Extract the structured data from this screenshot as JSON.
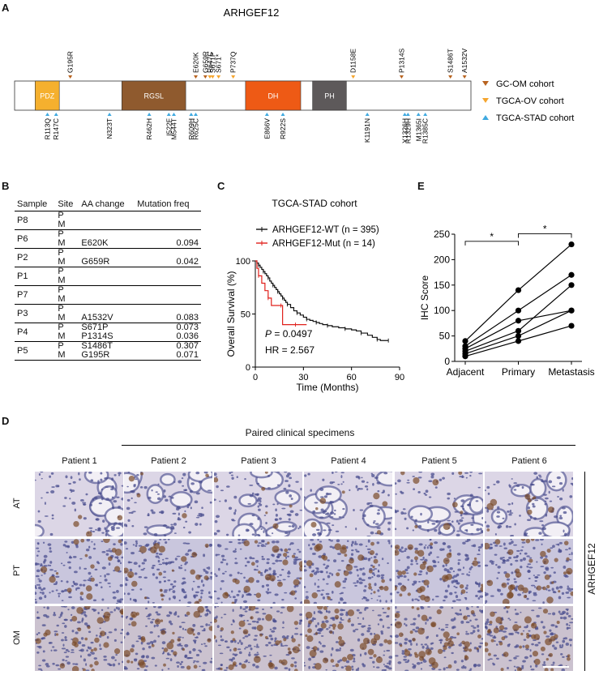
{
  "panelA": {
    "letter": "A",
    "gene_title": "ARHGEF12",
    "domains": [
      {
        "name": "PDZ",
        "start": 0.045,
        "end": 0.098,
        "color": "#f5b02e"
      },
      {
        "name": "RGSL",
        "start": 0.235,
        "end": 0.375,
        "color": "#8f5a2e"
      },
      {
        "name": "DH",
        "start": 0.506,
        "end": 0.627,
        "color": "#ee5a15"
      },
      {
        "name": "PH",
        "start": 0.653,
        "end": 0.727,
        "color": "#5d595a"
      }
    ],
    "top_mutations": [
      {
        "label": "G195R",
        "pos": 0.122,
        "color": "#b8631f"
      },
      {
        "label": "E620K",
        "pos": 0.397,
        "color": "#b8631f"
      },
      {
        "label": "G659R",
        "pos": 0.418,
        "color": "#b8631f"
      },
      {
        "label": "R647C",
        "pos": 0.428,
        "color": "#f5a52e"
      },
      {
        "label": "S671P",
        "pos": 0.434,
        "color": "#f5a52e"
      },
      {
        "label": "S671*",
        "pos": 0.447,
        "color": "#f5a52e"
      },
      {
        "label": "P737Q",
        "pos": 0.479,
        "color": "#f5a52e"
      },
      {
        "label": "D1158E",
        "pos": 0.742,
        "color": "#f5a52e"
      },
      {
        "label": "P1314S",
        "pos": 0.848,
        "color": "#b8631f"
      },
      {
        "label": "S1486T",
        "pos": 0.955,
        "color": "#b8631f"
      },
      {
        "label": "A1532V",
        "pos": 0.986,
        "color": "#b8631f"
      }
    ],
    "bottom_mutations": [
      {
        "label": "R113Q",
        "pos": 0.072
      },
      {
        "label": "R147C",
        "pos": 0.091
      },
      {
        "label": "N323T",
        "pos": 0.208
      },
      {
        "label": "R462H",
        "pos": 0.295
      },
      {
        "label": "I522F",
        "pos": 0.338
      },
      {
        "label": "M544T",
        "pos": 0.349
      },
      {
        "label": "R609H",
        "pos": 0.387
      },
      {
        "label": "R625C",
        "pos": 0.397
      },
      {
        "label": "E866V",
        "pos": 0.553
      },
      {
        "label": "R922S",
        "pos": 0.588
      },
      {
        "label": "K1191N",
        "pos": 0.773
      },
      {
        "label": "Y1326H",
        "pos": 0.855
      },
      {
        "label": "R1329H",
        "pos": 0.862
      },
      {
        "label": "M1365I",
        "pos": 0.885
      },
      {
        "label": "R1385C",
        "pos": 0.9
      }
    ],
    "legend": [
      {
        "label": "GC-OM cohort",
        "color": "#b8631f",
        "marker": "down"
      },
      {
        "label": "TGCA-OV cohort",
        "color": "#f5a52e",
        "marker": "down"
      },
      {
        "label": "TGCA-STAD cohort",
        "color": "#3fa9e0",
        "marker": "up"
      }
    ]
  },
  "panelB": {
    "letter": "B",
    "headers": [
      "Sample",
      "Site",
      "AA change",
      "Mutation freq"
    ],
    "rows": [
      {
        "sample": "P8",
        "sites": [
          "P",
          "M"
        ],
        "changes": [
          "",
          ""
        ],
        "freqs": [
          "",
          ""
        ]
      },
      {
        "sample": "P6",
        "sites": [
          "P",
          "M"
        ],
        "changes": [
          "",
          "E620K"
        ],
        "freqs": [
          "",
          "0.094"
        ]
      },
      {
        "sample": "P2",
        "sites": [
          "P",
          "M"
        ],
        "changes": [
          "",
          "G659R"
        ],
        "freqs": [
          "",
          "0.042"
        ]
      },
      {
        "sample": "P1",
        "sites": [
          "P",
          "M"
        ],
        "changes": [
          "",
          ""
        ],
        "freqs": [
          "",
          ""
        ]
      },
      {
        "sample": "P7",
        "sites": [
          "P",
          "M"
        ],
        "changes": [
          "",
          ""
        ],
        "freqs": [
          "",
          ""
        ]
      },
      {
        "sample": "P3",
        "sites": [
          "P",
          "M"
        ],
        "changes": [
          "",
          "A1532V"
        ],
        "freqs": [
          "",
          "0.083"
        ]
      },
      {
        "sample": "P4",
        "sites": [
          "P",
          "M"
        ],
        "changes": [
          "S671P",
          "P1314S"
        ],
        "freqs": [
          "0.073",
          "0.036"
        ]
      },
      {
        "sample": "P5",
        "sites": [
          "P",
          "M"
        ],
        "changes": [
          "S1486T",
          "G195R"
        ],
        "freqs": [
          "0.307",
          "0.071"
        ]
      }
    ]
  },
  "panelC": {
    "letter": "C",
    "title": "TGCA-STAD cohort",
    "legend": [
      {
        "label": "ARHGEF12-WT (n = 395)",
        "color": "#111111"
      },
      {
        "label": "ARHGEF12-Mut (n = 14)",
        "color": "#e0201b"
      }
    ],
    "p_label": "P",
    "p_value": " = 0.0497",
    "hr": "HR = 2.567",
    "chart_data": {
      "type": "line",
      "xlabel": "Time (Months)",
      "ylabel": "Overall Survival (%)",
      "xlim": [
        0,
        90
      ],
      "ylim": [
        0,
        100
      ],
      "xticks": [
        0,
        30,
        60,
        90
      ],
      "yticks": [
        0,
        50,
        100
      ],
      "series": [
        {
          "name": "ARHGEF12-WT (n = 395)",
          "color": "#111111",
          "x": [
            0,
            1,
            2,
            3,
            4,
            5,
            6,
            7,
            8,
            9,
            10,
            11,
            12,
            13,
            14,
            15,
            16,
            17,
            18,
            19,
            20,
            22,
            24,
            26,
            28,
            30,
            32,
            34,
            36,
            38,
            40,
            42,
            45,
            48,
            52,
            56,
            60,
            63,
            66,
            70,
            73,
            76,
            78,
            80,
            83
          ],
          "y": [
            100,
            98,
            96,
            94,
            92,
            90,
            88,
            86,
            84,
            81,
            79,
            77,
            75,
            73,
            71,
            69,
            67,
            65,
            63,
            61,
            59,
            56,
            53,
            51,
            49,
            47,
            45,
            44,
            43,
            42,
            41,
            40,
            39,
            38,
            37,
            36,
            35,
            34,
            32,
            30,
            28,
            26,
            25,
            25,
            25
          ]
        },
        {
          "name": "ARHGEF12-Mut (n = 14)",
          "color": "#e0201b",
          "x": [
            0,
            1,
            2,
            4,
            6,
            8,
            10,
            13,
            16,
            17,
            20,
            25,
            30,
            32
          ],
          "y": [
            100,
            93,
            86,
            79,
            72,
            65,
            58,
            58,
            58,
            40,
            40,
            40,
            40,
            40
          ]
        }
      ]
    }
  },
  "panelE": {
    "letter": "E",
    "significance": [
      "*",
      "*"
    ],
    "chart_data": {
      "type": "line",
      "categories": [
        "Adjacent",
        "Primary",
        "Metastasis"
      ],
      "ylabel": "IHC Score",
      "ylim": [
        0,
        250
      ],
      "yticks": [
        0,
        50,
        100,
        150,
        200,
        250
      ],
      "series": [
        {
          "values": [
            40,
            140,
            230
          ]
        },
        {
          "values": [
            30,
            100,
            170
          ]
        },
        {
          "values": [
            25,
            80,
            100
          ]
        },
        {
          "values": [
            20,
            60,
            150
          ]
        },
        {
          "values": [
            15,
            50,
            100
          ]
        },
        {
          "values": [
            10,
            40,
            70
          ]
        }
      ]
    }
  },
  "panelD": {
    "letter": "D",
    "header": "Paired clinical specimens",
    "patients": [
      "Patient 1",
      "Patient 2",
      "Patient 3",
      "Patient 4",
      "Patient 5",
      "Patient 6"
    ],
    "rows": [
      "AT",
      "PT",
      "OM"
    ],
    "side_label": "ARHGEF12",
    "stain_colors": {
      "background": "#d9d3e4",
      "nuclei": "#4b4f8f",
      "brown": "#7a4b2a"
    }
  }
}
